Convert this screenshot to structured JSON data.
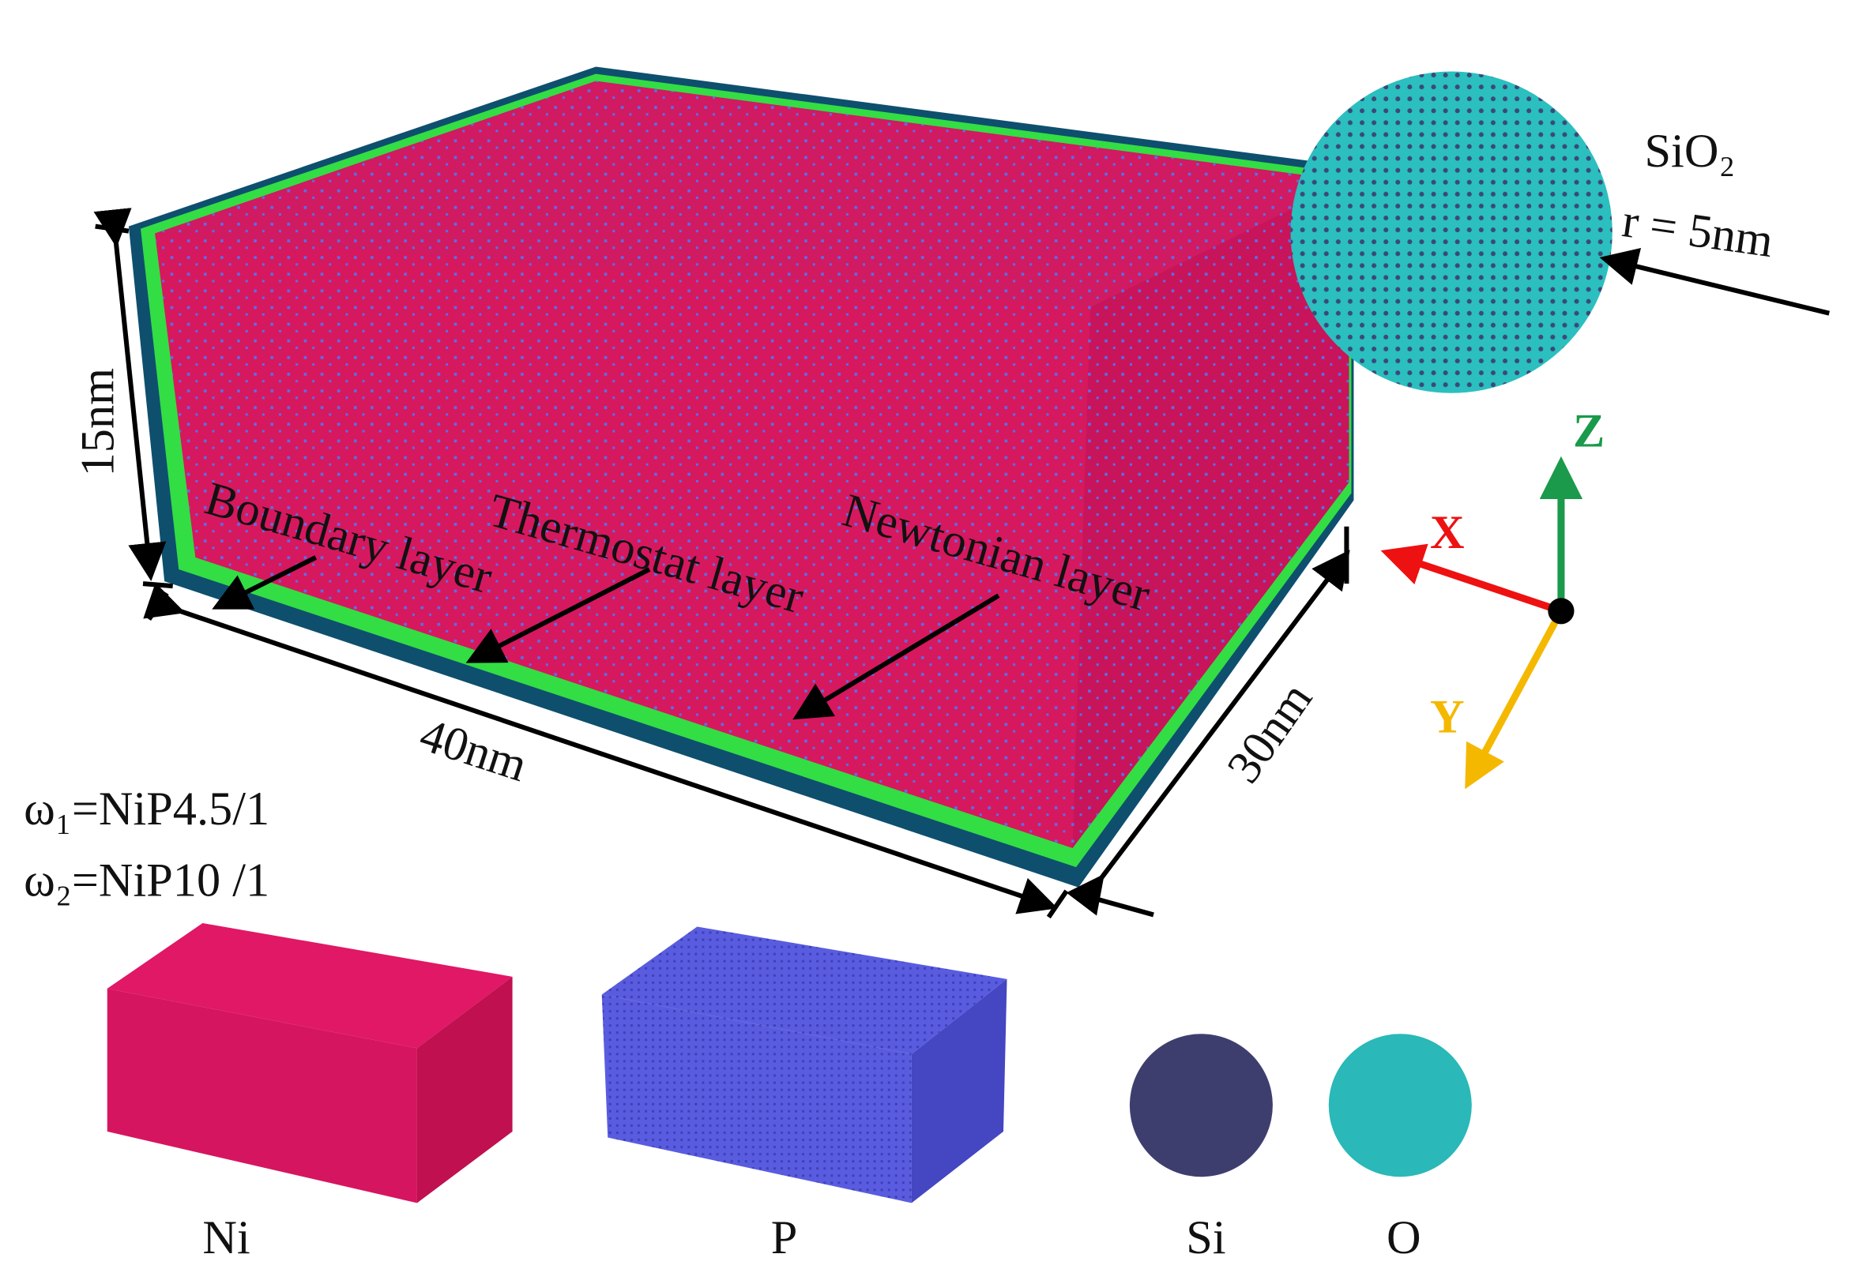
{
  "labels": {
    "particle": "SiO₂",
    "radius": "r = 5nm",
    "height": "15nm",
    "length": "40nm",
    "width": "30nm",
    "boundary": "Boundary layer",
    "thermostat": "Thermostat layer",
    "newtonian": "Newtonian layer",
    "axis_x": "X",
    "axis_y": "Y",
    "axis_z": "Z",
    "omega1": "ω₁=NiP4.5/1",
    "omega2": "ω₂=NiP10 /1"
  },
  "elements": [
    "Ni",
    "P",
    "Si",
    "O"
  ]
}
